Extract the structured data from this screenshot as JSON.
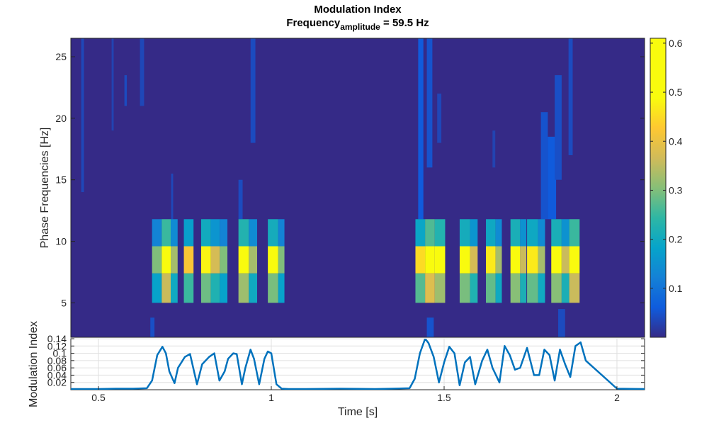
{
  "chart_data": [
    {
      "type": "heatmap",
      "title": "Modulation Index",
      "subtitle_prefix": "Frequency",
      "subtitle_subscript": "amplitude",
      "subtitle_suffix": " = 59.5 Hz",
      "xlabel": "",
      "ylabel": "Phase Frequencies [Hz]",
      "xlim": [
        0.42,
        2.08
      ],
      "ylim": [
        2.2,
        26.5
      ],
      "yticks": [
        5,
        10,
        15,
        20,
        25
      ],
      "colorbar": {
        "cmap": "parula",
        "range": [
          0,
          0.61
        ],
        "ticks": [
          0.1,
          0.2,
          0.3,
          0.4,
          0.5,
          0.6
        ]
      },
      "row_edges": [
        5,
        7.4,
        9.6,
        11.8
      ],
      "row_multipliers": [
        0.6,
        1.0,
        0.42
      ],
      "active_blocks": [
        {
          "x": 0.655,
          "w": 0.028,
          "m": 0.5
        },
        {
          "x": 0.683,
          "w": 0.026,
          "m": 1.0
        },
        {
          "x": 0.709,
          "w": 0.02,
          "m": 0.55
        },
        {
          "x": 0.747,
          "w": 0.028,
          "m": 0.7
        },
        {
          "x": 0.797,
          "w": 0.028,
          "m": 0.8
        },
        {
          "x": 0.825,
          "w": 0.026,
          "m": 0.62
        },
        {
          "x": 0.851,
          "w": 0.022,
          "m": 0.5
        },
        {
          "x": 0.905,
          "w": 0.03,
          "m": 0.9
        },
        {
          "x": 0.935,
          "w": 0.024,
          "m": 0.55
        },
        {
          "x": 0.99,
          "w": 0.03,
          "m": 0.82
        },
        {
          "x": 1.02,
          "w": 0.018,
          "m": 0.5
        },
        {
          "x": 1.417,
          "w": 0.028,
          "m": 0.75
        },
        {
          "x": 1.445,
          "w": 0.028,
          "m": 1.06
        },
        {
          "x": 1.473,
          "w": 0.03,
          "m": 0.9
        },
        {
          "x": 1.545,
          "w": 0.03,
          "m": 0.82
        },
        {
          "x": 1.575,
          "w": 0.022,
          "m": 0.62
        },
        {
          "x": 1.621,
          "w": 0.028,
          "m": 0.78
        },
        {
          "x": 1.649,
          "w": 0.018,
          "m": 0.55
        },
        {
          "x": 1.692,
          "w": 0.028,
          "m": 0.85
        },
        {
          "x": 1.72,
          "w": 0.018,
          "m": 0.6
        },
        {
          "x": 1.74,
          "w": 0.032,
          "m": 0.78
        },
        {
          "x": 1.772,
          "w": 0.02,
          "m": 0.55
        },
        {
          "x": 1.81,
          "w": 0.03,
          "m": 0.85
        },
        {
          "x": 1.84,
          "w": 0.022,
          "m": 0.6
        },
        {
          "x": 1.862,
          "w": 0.03,
          "m": 1.0
        }
      ],
      "streaks": [
        {
          "x": 0.45,
          "w": 0.008,
          "y0": 14,
          "y1": 26.5,
          "v": 0.035
        },
        {
          "x": 0.538,
          "w": 0.006,
          "y0": 19,
          "y1": 26.5,
          "v": 0.03
        },
        {
          "x": 0.575,
          "w": 0.007,
          "y0": 21,
          "y1": 23.5,
          "v": 0.04
        },
        {
          "x": 0.62,
          "w": 0.012,
          "y0": 21,
          "y1": 26.5,
          "v": 0.035
        },
        {
          "x": 0.94,
          "w": 0.014,
          "y0": 18,
          "y1": 26.5,
          "v": 0.04
        },
        {
          "x": 0.905,
          "w": 0.012,
          "y0": 11.8,
          "y1": 15,
          "v": 0.04
        },
        {
          "x": 0.71,
          "w": 0.006,
          "y0": 11.8,
          "y1": 15.5,
          "v": 0.035
        },
        {
          "x": 1.425,
          "w": 0.015,
          "y0": 11.8,
          "y1": 26.5,
          "v": 0.06
        },
        {
          "x": 1.45,
          "w": 0.016,
          "y0": 16,
          "y1": 26.5,
          "v": 0.05
        },
        {
          "x": 1.48,
          "w": 0.012,
          "y0": 18,
          "y1": 22,
          "v": 0.035
        },
        {
          "x": 1.64,
          "w": 0.008,
          "y0": 16,
          "y1": 19,
          "v": 0.03
        },
        {
          "x": 1.78,
          "w": 0.02,
          "y0": 11.8,
          "y1": 20.5,
          "v": 0.05
        },
        {
          "x": 1.8,
          "w": 0.024,
          "y0": 11.8,
          "y1": 18.5,
          "v": 0.06
        },
        {
          "x": 1.82,
          "w": 0.02,
          "y0": 15,
          "y1": 23.5,
          "v": 0.045
        },
        {
          "x": 1.86,
          "w": 0.012,
          "y0": 17,
          "y1": 26.5,
          "v": 0.04
        },
        {
          "x": 0.65,
          "w": 0.012,
          "y0": 2.2,
          "y1": 3.8,
          "v": 0.045
        },
        {
          "x": 1.45,
          "w": 0.02,
          "y0": 2.2,
          "y1": 3.8,
          "v": 0.05
        },
        {
          "x": 1.83,
          "w": 0.02,
          "y0": 2.2,
          "y1": 4.5,
          "v": 0.04
        }
      ]
    },
    {
      "type": "line",
      "title": "",
      "xlabel": "Time [s]",
      "ylabel": "Modulation Index",
      "xlim": [
        0.42,
        2.08
      ],
      "ylim": [
        0,
        0.14
      ],
      "xticks": [
        0.5,
        1,
        1.5,
        2
      ],
      "xticklabels": [
        "0.5",
        "1",
        "1.5",
        "2"
      ],
      "yticks": [
        0.02,
        0.04,
        0.06,
        0.08,
        0.1,
        0.12,
        0.14
      ],
      "yticklabels": [
        "0.02",
        "0.04",
        "0.06",
        "0.08",
        "0.1",
        "0.12",
        "0.14"
      ],
      "grid": true,
      "series_color": "#0072bd",
      "x": [
        0.42,
        0.5,
        0.55,
        0.6,
        0.64,
        0.655,
        0.67,
        0.685,
        0.695,
        0.705,
        0.72,
        0.73,
        0.75,
        0.765,
        0.785,
        0.8,
        0.82,
        0.835,
        0.85,
        0.865,
        0.875,
        0.89,
        0.9,
        0.915,
        0.925,
        0.94,
        0.95,
        0.965,
        0.98,
        0.99,
        1.0,
        1.015,
        1.03,
        1.05,
        1.1,
        1.2,
        1.3,
        1.35,
        1.4,
        1.415,
        1.43,
        1.445,
        1.455,
        1.47,
        1.485,
        1.5,
        1.515,
        1.53,
        1.545,
        1.56,
        1.575,
        1.59,
        1.61,
        1.625,
        1.64,
        1.66,
        1.675,
        1.69,
        1.705,
        1.72,
        1.74,
        1.76,
        1.775,
        1.79,
        1.805,
        1.82,
        1.835,
        1.85,
        1.865,
        1.88,
        1.895,
        1.91,
        2.0,
        2.08
      ],
      "y": [
        0.002,
        0.002,
        0.003,
        0.003,
        0.004,
        0.025,
        0.095,
        0.118,
        0.1,
        0.05,
        0.018,
        0.06,
        0.09,
        0.098,
        0.015,
        0.07,
        0.09,
        0.1,
        0.025,
        0.05,
        0.085,
        0.1,
        0.098,
        0.015,
        0.06,
        0.11,
        0.085,
        0.015,
        0.085,
        0.105,
        0.1,
        0.015,
        0.003,
        0.002,
        0.002,
        0.003,
        0.002,
        0.003,
        0.004,
        0.03,
        0.1,
        0.14,
        0.128,
        0.09,
        0.02,
        0.075,
        0.118,
        0.1,
        0.012,
        0.075,
        0.09,
        0.015,
        0.08,
        0.11,
        0.06,
        0.02,
        0.12,
        0.095,
        0.055,
        0.06,
        0.115,
        0.04,
        0.04,
        0.11,
        0.095,
        0.025,
        0.11,
        0.07,
        0.035,
        0.12,
        0.13,
        0.08,
        0.003,
        0.002
      ]
    }
  ]
}
